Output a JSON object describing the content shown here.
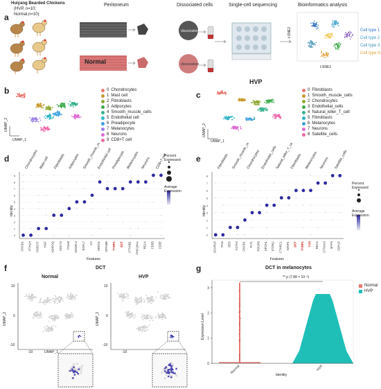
{
  "panel_a": {
    "label": "a",
    "cohort_title": "Huiyang Bearded Chickens",
    "cohort_line2": "(HVP, n=10;",
    "cohort_line3": "Normal,n=10)",
    "peritoneum": "Peritoneum",
    "dissociated_cells": "Dissociated cells",
    "dissociation_label": "dissociation",
    "sc_seq": "Single-cell sequencing",
    "bioinfo": "Bioinformatics analysis",
    "tsne_y": "t-SNE2",
    "tsne_x": "t-SNE1",
    "cell_types": [
      {
        "name": "Cell type 1",
        "color": "#2f6fc4"
      },
      {
        "name": "Cell type 2",
        "color": "#39a0c9"
      },
      {
        "name": "Cell type 3",
        "color": "#3a8fb0"
      },
      {
        "name": "Cell type N",
        "color": "#e0a13a"
      }
    ]
  },
  "panel_b": {
    "label": "b",
    "title": "Normal",
    "umap_y": "UMAP_2",
    "umap_x": "UMAP_1",
    "legend": [
      {
        "id": "0",
        "name": "Chondrocytes",
        "color": "#e8766d"
      },
      {
        "id": "1",
        "name": "Mast cell",
        "color": "#c89a2f"
      },
      {
        "id": "2",
        "name": "Fibroblasts",
        "color": "#8fa832"
      },
      {
        "id": "3",
        "name": "Adipocytes",
        "color": "#3caa4a"
      },
      {
        "id": "4",
        "name": "Smooth_muscle_cells",
        "color": "#34b18d"
      },
      {
        "id": "5",
        "name": "Endothelial cell",
        "color": "#2eb5c4"
      },
      {
        "id": "6",
        "name": "Preadipocyte",
        "color": "#3a9fe0"
      },
      {
        "id": "7",
        "name": "Melanocytes",
        "color": "#9b7fe6"
      },
      {
        "id": "8",
        "name": "Neurons",
        "color": "#de6ad4"
      },
      {
        "id": "9",
        "name": "CD8+T cell",
        "color": "#f066a8"
      }
    ]
  },
  "panel_c": {
    "label": "c",
    "title": "HVP",
    "umap_y": "UMAP_2",
    "umap_x": "UMAP_1",
    "legend": [
      {
        "id": "0",
        "name": "Fibroblasts",
        "color": "#e8766d"
      },
      {
        "id": "1",
        "name": "Smooth_muscle_cells",
        "color": "#c89a2f"
      },
      {
        "id": "2",
        "name": "Chondrocytes",
        "color": "#8fa832"
      },
      {
        "id": "3",
        "name": "Endothelial_cells",
        "color": "#3caa4a"
      },
      {
        "id": "4",
        "name": "Natural_killer_T_cell",
        "color": "#34b18d"
      },
      {
        "id": "5",
        "name": "Fibroblasts",
        "color": "#2eb5c4"
      },
      {
        "id": "6",
        "name": "Melanocytes",
        "color": "#3a9fe0"
      },
      {
        "id": "7",
        "name": "Neurons",
        "color": "#de6ad4"
      },
      {
        "id": "8",
        "name": "Satellite_cells",
        "color": "#f066a8"
      }
    ]
  },
  "panel_d": {
    "label": "d",
    "ylabel": "Identity",
    "xlabel": "Features",
    "columns": [
      "Chondrocytes",
      "Mast cell",
      "Fibroblasts",
      "Adipocytes",
      "Smooth_muscle_cells",
      "Endothelial cell",
      "Preadipocyte",
      "Melanocytes",
      "Neurons",
      "CD8+T cell"
    ],
    "genes": [
      "CHODL",
      "PTHLH",
      "HS3ST1",
      "HGF",
      "ADIPOQ",
      "ADCY3",
      "ITGA8",
      "ADGRL4",
      "EGFL7",
      "CA",
      "NRXN1",
      "GPNMB",
      "TYRP1",
      "DCT",
      "CTNNB1",
      "PHF19NA",
      "RELN",
      "CD3D",
      "CD3E"
    ],
    "red_genes": [
      "TYRP1",
      "DCT"
    ],
    "legend_pct": "Percent Expressed",
    "legend_avg": "Average Expression"
  },
  "panel_e": {
    "label": "e",
    "ylabel": "Identity",
    "xlabel": "Features",
    "columns": [
      "Fibroblasts",
      "Smooth_muscle_cells",
      "Chondrocytes",
      "Endothelial_cells",
      "Natural_killer_T_cell",
      "Fibroblasts",
      "Melanocytes",
      "Neurons",
      "Satellite_cells"
    ],
    "genes": [
      "SCARA5",
      "PI16",
      "DES",
      "ACTA2",
      "CHODL",
      "FLT1",
      "PDGFB",
      "SPON1",
      "PTPRC",
      "CTHRC1",
      "WISP1",
      "DCT",
      "TYRP1",
      "TYR",
      "RELN",
      "CTNNA3",
      "MYF5",
      "CDH15"
    ],
    "red_genes": [
      "DCT",
      "TYRP1",
      "TYR"
    ],
    "legend_pct": "Percent Expressed",
    "legend_avg": "Average Expression"
  },
  "panel_f": {
    "label": "f",
    "title": "DCT",
    "left_title": "Normal",
    "right_title": "HVP",
    "umap_y": "UMAP_2",
    "umap_x": "UMAP_1",
    "ticks_x": [
      "-10",
      "0",
      "10"
    ],
    "ticks_y": [
      "10",
      "0",
      "-10"
    ]
  },
  "panel_g": {
    "label": "g",
    "title": "DCT in melanocytes",
    "significance": "** p (7.88 × 10⁻³)",
    "ylabel": "Expression Level",
    "xlabel": "Identity",
    "legend": [
      {
        "name": "Normal",
        "color": "#e8766d"
      },
      {
        "name": "HVP",
        "color": "#1fbfb8"
      }
    ],
    "chart_data": {
      "type": "violin",
      "title": "DCT in melanocytes",
      "categories": [
        "Normal",
        "HVP"
      ],
      "y_ticks": [
        0,
        1,
        2,
        3
      ],
      "ylim": [
        0,
        3.3
      ]
    }
  },
  "normal_label": "Normal",
  "hvp_label": "HVP"
}
